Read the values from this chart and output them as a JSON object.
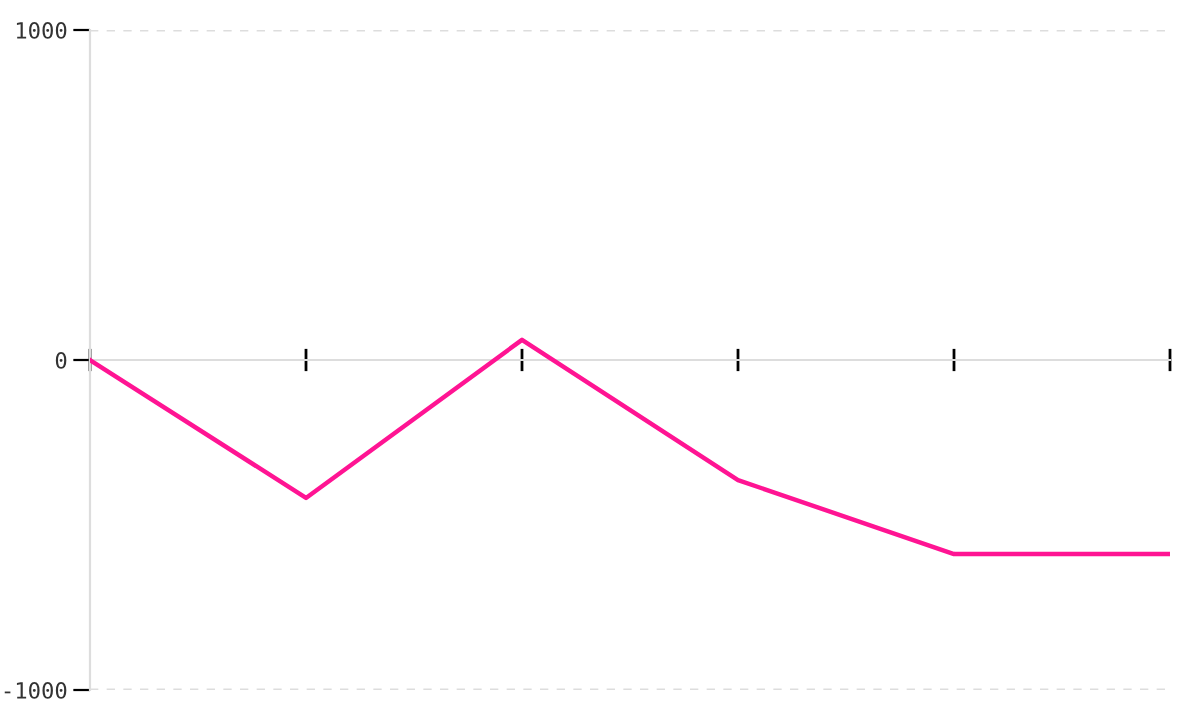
{
  "chart_data": {
    "type": "line",
    "categories": [
      null,
      null,
      null,
      null,
      null,
      null
    ],
    "series": [
      {
        "color": "#ff1493",
        "values": [
          0,
          -418,
          61,
          -364,
          -588,
          -588
        ]
      }
    ],
    "ylim": [
      -1000,
      1000
    ],
    "yticks": [
      -1000,
      0,
      1000
    ],
    "grid": "y",
    "marker": "none",
    "line_style": "solid"
  }
}
